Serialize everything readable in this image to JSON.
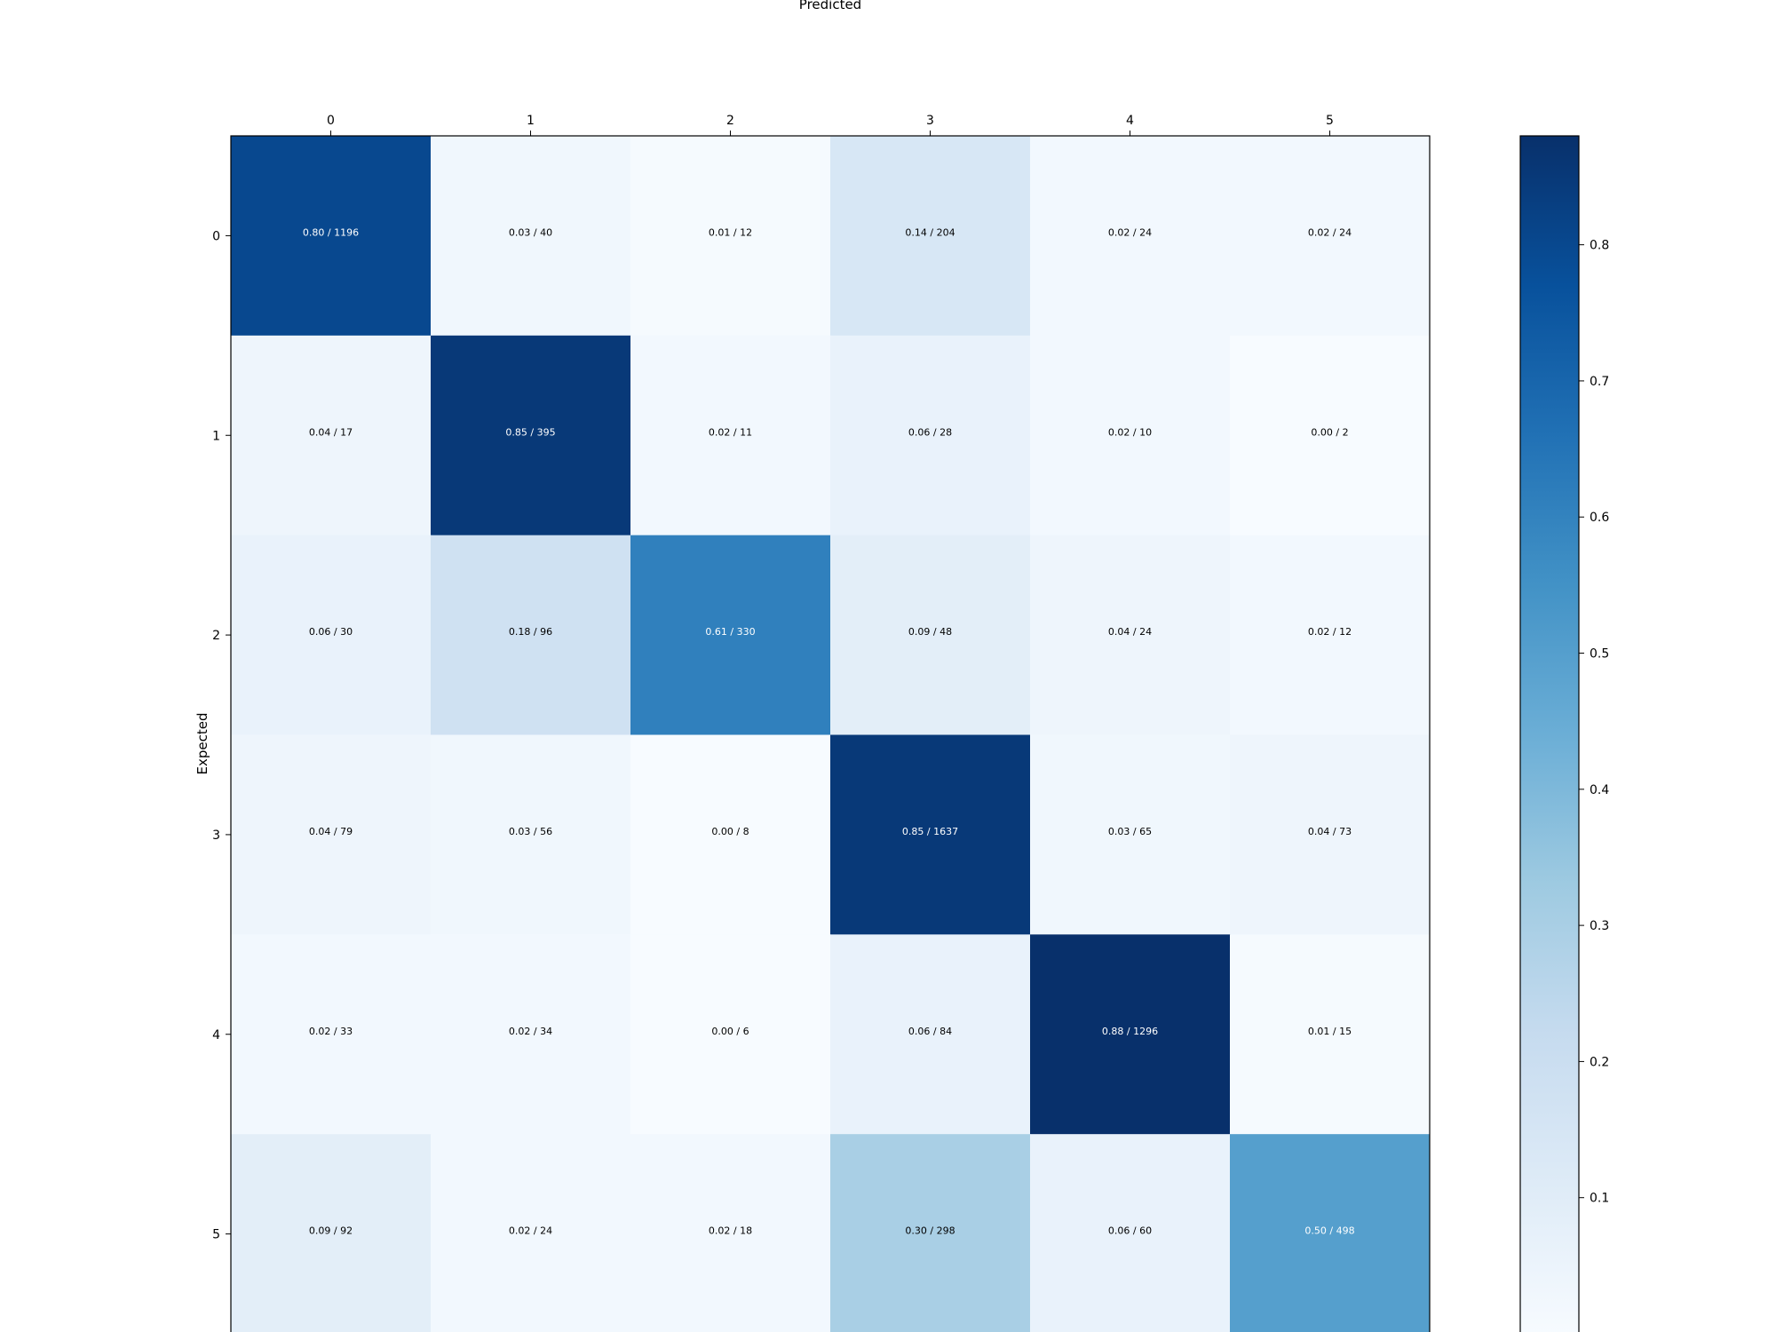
{
  "chart_data": {
    "type": "heatmap",
    "xlabel": "Predicted",
    "ylabel": "Expected",
    "x_categories": [
      "0",
      "1",
      "2",
      "3",
      "4",
      "5"
    ],
    "y_categories": [
      "0",
      "1",
      "2",
      "3",
      "4",
      "5"
    ],
    "cells": [
      [
        {
          "ratio": 0.8,
          "count": 1196,
          "label": "0.80 / 1196"
        },
        {
          "ratio": 0.03,
          "count": 40,
          "label": "0.03 / 40"
        },
        {
          "ratio": 0.01,
          "count": 12,
          "label": "0.01 / 12"
        },
        {
          "ratio": 0.14,
          "count": 204,
          "label": "0.14 / 204"
        },
        {
          "ratio": 0.02,
          "count": 24,
          "label": "0.02 / 24"
        },
        {
          "ratio": 0.02,
          "count": 24,
          "label": "0.02 / 24"
        }
      ],
      [
        {
          "ratio": 0.04,
          "count": 17,
          "label": "0.04 / 17"
        },
        {
          "ratio": 0.85,
          "count": 395,
          "label": "0.85 / 395"
        },
        {
          "ratio": 0.02,
          "count": 11,
          "label": "0.02 / 11"
        },
        {
          "ratio": 0.06,
          "count": 28,
          "label": "0.06 / 28"
        },
        {
          "ratio": 0.02,
          "count": 10,
          "label": "0.02 / 10"
        },
        {
          "ratio": 0.0,
          "count": 2,
          "label": "0.00 / 2"
        }
      ],
      [
        {
          "ratio": 0.06,
          "count": 30,
          "label": "0.06 / 30"
        },
        {
          "ratio": 0.18,
          "count": 96,
          "label": "0.18 / 96"
        },
        {
          "ratio": 0.61,
          "count": 330,
          "label": "0.61 / 330"
        },
        {
          "ratio": 0.09,
          "count": 48,
          "label": "0.09 / 48"
        },
        {
          "ratio": 0.04,
          "count": 24,
          "label": "0.04 / 24"
        },
        {
          "ratio": 0.02,
          "count": 12,
          "label": "0.02 / 12"
        }
      ],
      [
        {
          "ratio": 0.04,
          "count": 79,
          "label": "0.04 / 79"
        },
        {
          "ratio": 0.03,
          "count": 56,
          "label": "0.03 / 56"
        },
        {
          "ratio": 0.0,
          "count": 8,
          "label": "0.00 / 8"
        },
        {
          "ratio": 0.85,
          "count": 1637,
          "label": "0.85 / 1637"
        },
        {
          "ratio": 0.03,
          "count": 65,
          "label": "0.03 / 65"
        },
        {
          "ratio": 0.04,
          "count": 73,
          "label": "0.04 / 73"
        }
      ],
      [
        {
          "ratio": 0.02,
          "count": 33,
          "label": "0.02 / 33"
        },
        {
          "ratio": 0.02,
          "count": 34,
          "label": "0.02 / 34"
        },
        {
          "ratio": 0.0,
          "count": 6,
          "label": "0.00 / 6"
        },
        {
          "ratio": 0.06,
          "count": 84,
          "label": "0.06 / 84"
        },
        {
          "ratio": 0.88,
          "count": 1296,
          "label": "0.88 / 1296"
        },
        {
          "ratio": 0.01,
          "count": 15,
          "label": "0.01 / 15"
        }
      ],
      [
        {
          "ratio": 0.09,
          "count": 92,
          "label": "0.09 / 92"
        },
        {
          "ratio": 0.02,
          "count": 24,
          "label": "0.02 / 24"
        },
        {
          "ratio": 0.02,
          "count": 18,
          "label": "0.02 / 18"
        },
        {
          "ratio": 0.3,
          "count": 298,
          "label": "0.30 / 298"
        },
        {
          "ratio": 0.06,
          "count": 60,
          "label": "0.06 / 60"
        },
        {
          "ratio": 0.5,
          "count": 498,
          "label": "0.50 / 498"
        }
      ]
    ],
    "colorbar": {
      "colormap": "Blues",
      "range": [
        0.0,
        0.88
      ],
      "ticks": [
        0.1,
        0.2,
        0.3,
        0.4,
        0.5,
        0.6,
        0.7,
        0.8
      ],
      "tick_labels": [
        "0.1",
        "0.2",
        "0.3",
        "0.4",
        "0.5",
        "0.6",
        "0.7",
        "0.8"
      ]
    },
    "x_axis_position": "top",
    "grid": false
  }
}
